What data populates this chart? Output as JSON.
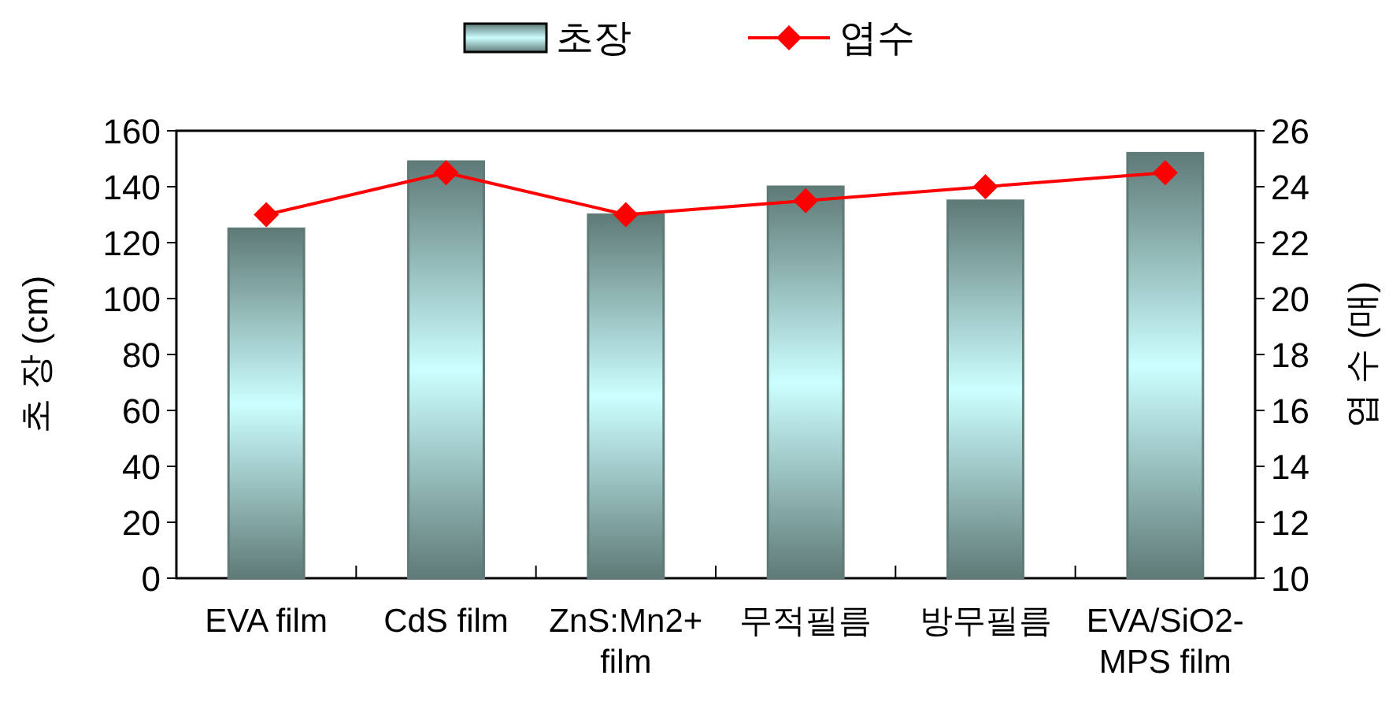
{
  "chart_data": {
    "type": "bar",
    "categories": [
      "EVA film",
      "CdS film",
      "ZnS:Mn2+ film",
      "무적필름",
      "방무필름",
      "EVA/SiO2-MPS film"
    ],
    "ylabel": "초 장 (cm)",
    "y2label": "엽 수 (매)",
    "ylim": [
      0,
      160
    ],
    "yticks": [
      0,
      20,
      40,
      60,
      80,
      100,
      120,
      140,
      160
    ],
    "y2lim": [
      10,
      26
    ],
    "y2ticks": [
      10,
      12,
      14,
      16,
      18,
      20,
      22,
      24,
      26
    ],
    "legend": "top",
    "grid": false,
    "marker": "diamond",
    "line_style": "solid",
    "series": [
      {
        "name": "초장",
        "color": "#5f7a77",
        "values": [
          125,
          149,
          130,
          140,
          135,
          152
        ]
      },
      {
        "name": "엽수",
        "type": "line",
        "axis": "y2",
        "color": "#ff0000",
        "values": [
          23,
          24.5,
          23,
          23.5,
          24,
          24.5
        ]
      }
    ]
  }
}
